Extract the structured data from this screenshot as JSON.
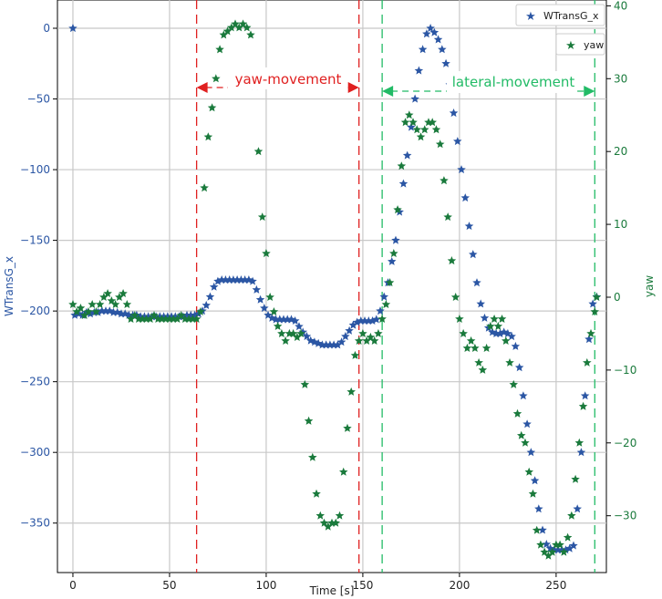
{
  "chart_data": {
    "type": "scatter",
    "xlabel": "Time [s]",
    "ylabel_left": "WTransG_x",
    "ylabel_right": "yaw",
    "xlim": [
      -8,
      276
    ],
    "ylim_left": [
      -385,
      20
    ],
    "ylim_right": [
      -37.8,
      40.8
    ],
    "x_ticks": [
      0,
      50,
      100,
      150,
      200,
      250
    ],
    "y_left_ticks": [
      0,
      -50,
      -100,
      -150,
      -200,
      -250,
      -300,
      -350
    ],
    "y_right_ticks": [
      40,
      30,
      20,
      10,
      0,
      -10,
      -20,
      -30
    ],
    "grid": true,
    "legend": [
      {
        "label": "WTransG_x",
        "color": "#2b56a4"
      },
      {
        "label": "yaw",
        "color": "#1a7a3c"
      }
    ],
    "annotations": [
      {
        "text": "yaw-movement",
        "x_start": 64,
        "x_end": 148,
        "color": "#e02020"
      },
      {
        "text": "lateral-movement",
        "x_start": 160,
        "x_end": 270,
        "color": "#22bb66"
      }
    ],
    "series": [
      {
        "name": "WTransG_x",
        "axis": "left",
        "color": "#2b56a4",
        "points": [
          [
            0,
            0
          ],
          [
            1,
            -203
          ],
          [
            3,
            -202
          ],
          [
            5,
            -203
          ],
          [
            7,
            -201
          ],
          [
            9,
            -202
          ],
          [
            11,
            -201
          ],
          [
            13,
            -201
          ],
          [
            15,
            -200
          ],
          [
            17,
            -200
          ],
          [
            19,
            -200
          ],
          [
            21,
            -201
          ],
          [
            23,
            -201
          ],
          [
            25,
            -202
          ],
          [
            27,
            -202
          ],
          [
            29,
            -203
          ],
          [
            31,
            -203
          ],
          [
            33,
            -203
          ],
          [
            35,
            -204
          ],
          [
            37,
            -204
          ],
          [
            39,
            -204
          ],
          [
            41,
            -204
          ],
          [
            43,
            -204
          ],
          [
            45,
            -204
          ],
          [
            47,
            -204
          ],
          [
            49,
            -204
          ],
          [
            51,
            -204
          ],
          [
            53,
            -204
          ],
          [
            55,
            -204
          ],
          [
            57,
            -204
          ],
          [
            59,
            -203
          ],
          [
            61,
            -203
          ],
          [
            63,
            -203
          ],
          [
            65,
            -202
          ],
          [
            67,
            -200
          ],
          [
            69,
            -196
          ],
          [
            71,
            -190
          ],
          [
            73,
            -183
          ],
          [
            75,
            -179
          ],
          [
            77,
            -178
          ],
          [
            79,
            -178
          ],
          [
            81,
            -178
          ],
          [
            83,
            -178
          ],
          [
            85,
            -178
          ],
          [
            87,
            -178
          ],
          [
            89,
            -178
          ],
          [
            91,
            -178
          ],
          [
            93,
            -179
          ],
          [
            95,
            -185
          ],
          [
            97,
            -192
          ],
          [
            99,
            -198
          ],
          [
            101,
            -203
          ],
          [
            103,
            -205
          ],
          [
            105,
            -206
          ],
          [
            107,
            -206
          ],
          [
            109,
            -206
          ],
          [
            111,
            -206
          ],
          [
            113,
            -206
          ],
          [
            115,
            -207
          ],
          [
            117,
            -211
          ],
          [
            119,
            -215
          ],
          [
            121,
            -218
          ],
          [
            123,
            -221
          ],
          [
            125,
            -222
          ],
          [
            127,
            -223
          ],
          [
            129,
            -224
          ],
          [
            131,
            -224
          ],
          [
            133,
            -224
          ],
          [
            135,
            -224
          ],
          [
            137,
            -224
          ],
          [
            139,
            -222
          ],
          [
            141,
            -218
          ],
          [
            143,
            -214
          ],
          [
            145,
            -210
          ],
          [
            147,
            -208
          ],
          [
            149,
            -207
          ],
          [
            151,
            -207
          ],
          [
            153,
            -207
          ],
          [
            155,
            -207
          ],
          [
            157,
            -206
          ],
          [
            159,
            -200
          ],
          [
            161,
            -190
          ],
          [
            163,
            -180
          ],
          [
            165,
            -165
          ],
          [
            167,
            -150
          ],
          [
            169,
            -130
          ],
          [
            171,
            -110
          ],
          [
            173,
            -90
          ],
          [
            175,
            -70
          ],
          [
            177,
            -50
          ],
          [
            179,
            -30
          ],
          [
            181,
            -15
          ],
          [
            183,
            -4
          ],
          [
            185,
            0
          ],
          [
            187,
            -3
          ],
          [
            189,
            -8
          ],
          [
            191,
            -15
          ],
          [
            193,
            -25
          ],
          [
            195,
            -40
          ],
          [
            197,
            -60
          ],
          [
            199,
            -80
          ],
          [
            201,
            -100
          ],
          [
            203,
            -120
          ],
          [
            205,
            -140
          ],
          [
            207,
            -160
          ],
          [
            209,
            -180
          ],
          [
            211,
            -195
          ],
          [
            213,
            -205
          ],
          [
            215,
            -212
          ],
          [
            217,
            -215
          ],
          [
            219,
            -216
          ],
          [
            221,
            -216
          ],
          [
            223,
            -215
          ],
          [
            225,
            -216
          ],
          [
            227,
            -218
          ],
          [
            229,
            -225
          ],
          [
            231,
            -240
          ],
          [
            233,
            -260
          ],
          [
            235,
            -280
          ],
          [
            237,
            -300
          ],
          [
            239,
            -320
          ],
          [
            241,
            -340
          ],
          [
            243,
            -355
          ],
          [
            245,
            -365
          ],
          [
            247,
            -368
          ],
          [
            249,
            -369
          ],
          [
            251,
            -369
          ],
          [
            253,
            -369
          ],
          [
            255,
            -369
          ],
          [
            257,
            -368
          ],
          [
            259,
            -366
          ],
          [
            261,
            -340
          ],
          [
            263,
            -300
          ],
          [
            265,
            -260
          ],
          [
            267,
            -220
          ],
          [
            269,
            -195
          ],
          [
            271,
            -190
          ]
        ]
      },
      {
        "name": "yaw",
        "axis": "right",
        "color": "#1a7a3c",
        "points": [
          [
            0,
            -1
          ],
          [
            2,
            -2
          ],
          [
            4,
            -1.5
          ],
          [
            6,
            -2.5
          ],
          [
            8,
            -2
          ],
          [
            10,
            -1
          ],
          [
            12,
            -2
          ],
          [
            14,
            -1
          ],
          [
            16,
            0
          ],
          [
            18,
            0.5
          ],
          [
            20,
            -0.5
          ],
          [
            22,
            -1
          ],
          [
            24,
            0
          ],
          [
            26,
            0.5
          ],
          [
            28,
            -1
          ],
          [
            30,
            -3
          ],
          [
            32,
            -2.5
          ],
          [
            34,
            -3
          ],
          [
            36,
            -3
          ],
          [
            38,
            -3
          ],
          [
            40,
            -3
          ],
          [
            42,
            -2.5
          ],
          [
            44,
            -3
          ],
          [
            46,
            -3
          ],
          [
            48,
            -3
          ],
          [
            50,
            -3
          ],
          [
            52,
            -3
          ],
          [
            54,
            -3
          ],
          [
            56,
            -2.5
          ],
          [
            58,
            -3
          ],
          [
            60,
            -3
          ],
          [
            62,
            -3
          ],
          [
            64,
            -3
          ],
          [
            66,
            -2
          ],
          [
            68,
            15
          ],
          [
            70,
            22
          ],
          [
            72,
            26
          ],
          [
            74,
            30
          ],
          [
            76,
            34
          ],
          [
            78,
            36
          ],
          [
            80,
            36.5
          ],
          [
            82,
            37
          ],
          [
            84,
            37.5
          ],
          [
            86,
            37
          ],
          [
            88,
            37.5
          ],
          [
            90,
            37
          ],
          [
            92,
            36
          ],
          [
            94,
            29
          ],
          [
            96,
            20
          ],
          [
            98,
            11
          ],
          [
            100,
            6
          ],
          [
            102,
            0
          ],
          [
            104,
            -2
          ],
          [
            106,
            -4
          ],
          [
            108,
            -5
          ],
          [
            110,
            -6
          ],
          [
            112,
            -5
          ],
          [
            114,
            -5
          ],
          [
            116,
            -5.5
          ],
          [
            118,
            -5
          ],
          [
            120,
            -12
          ],
          [
            122,
            -17
          ],
          [
            124,
            -22
          ],
          [
            126,
            -27
          ],
          [
            128,
            -30
          ],
          [
            130,
            -31
          ],
          [
            132,
            -31.5
          ],
          [
            134,
            -31
          ],
          [
            136,
            -31
          ],
          [
            138,
            -30
          ],
          [
            140,
            -24
          ],
          [
            142,
            -18
          ],
          [
            144,
            -13
          ],
          [
            146,
            -8
          ],
          [
            148,
            -6
          ],
          [
            150,
            -5
          ],
          [
            152,
            -6
          ],
          [
            154,
            -5.5
          ],
          [
            156,
            -6
          ],
          [
            158,
            -5
          ],
          [
            160,
            -3
          ],
          [
            162,
            -1
          ],
          [
            164,
            2
          ],
          [
            166,
            6
          ],
          [
            168,
            12
          ],
          [
            170,
            18
          ],
          [
            172,
            24
          ],
          [
            174,
            25
          ],
          [
            176,
            24
          ],
          [
            178,
            23
          ],
          [
            180,
            22
          ],
          [
            182,
            23
          ],
          [
            184,
            24
          ],
          [
            186,
            24
          ],
          [
            188,
            23
          ],
          [
            190,
            21
          ],
          [
            192,
            16
          ],
          [
            194,
            11
          ],
          [
            196,
            5
          ],
          [
            198,
            0
          ],
          [
            200,
            -3
          ],
          [
            202,
            -5
          ],
          [
            204,
            -7
          ],
          [
            206,
            -6
          ],
          [
            208,
            -7
          ],
          [
            210,
            -9
          ],
          [
            212,
            -10
          ],
          [
            214,
            -7
          ],
          [
            216,
            -4
          ],
          [
            218,
            -3
          ],
          [
            220,
            -4
          ],
          [
            222,
            -3
          ],
          [
            224,
            -6
          ],
          [
            226,
            -9
          ],
          [
            228,
            -12
          ],
          [
            230,
            -16
          ],
          [
            232,
            -19
          ],
          [
            234,
            -20
          ],
          [
            236,
            -24
          ],
          [
            238,
            -27
          ],
          [
            240,
            -32
          ],
          [
            242,
            -34
          ],
          [
            244,
            -35
          ],
          [
            246,
            -35.5
          ],
          [
            248,
            -35
          ],
          [
            250,
            -34
          ],
          [
            252,
            -34
          ],
          [
            254,
            -35
          ],
          [
            256,
            -33
          ],
          [
            258,
            -30
          ],
          [
            260,
            -25
          ],
          [
            262,
            -20
          ],
          [
            264,
            -15
          ],
          [
            266,
            -9
          ],
          [
            268,
            -5
          ],
          [
            270,
            -2
          ],
          [
            271,
            0
          ]
        ]
      }
    ]
  }
}
